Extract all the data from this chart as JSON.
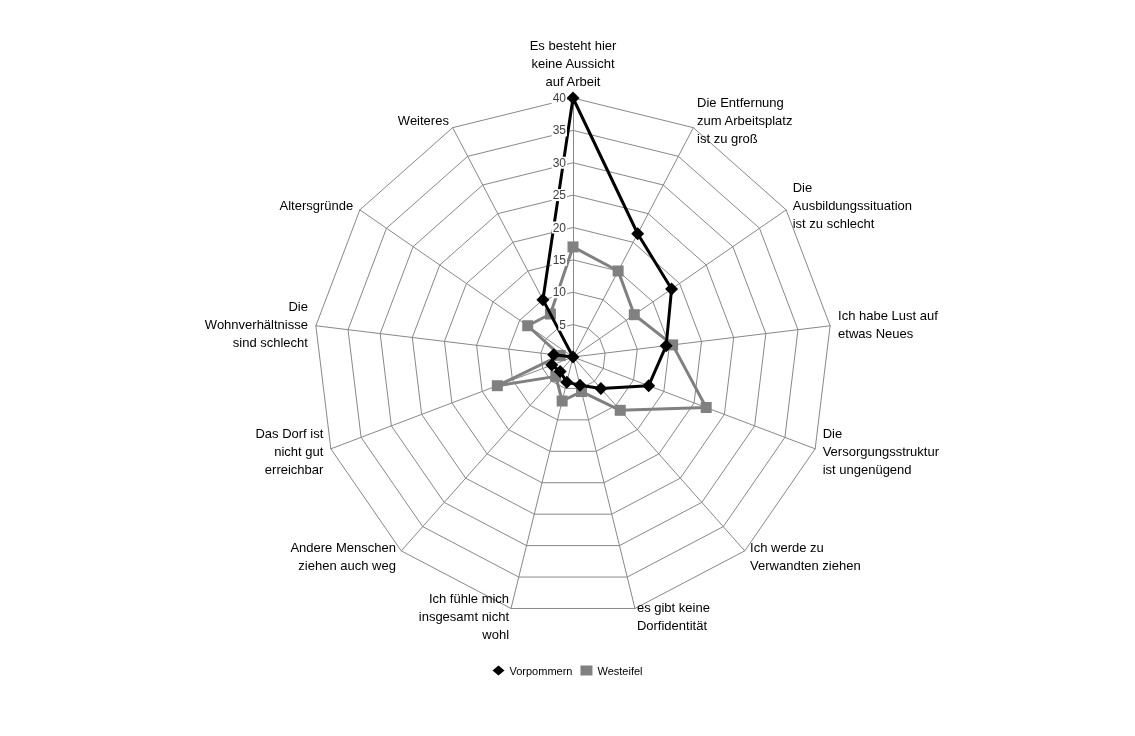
{
  "chart_data": {
    "type": "radar",
    "categories": [
      "Es besteht hier keine Aussicht auf Arbeit",
      "Die Entfernung zum Arbeitsplatz ist zu groß",
      "Die Ausbildungssituation ist zu schlecht",
      "Ich habe Lust auf etwas Neues",
      "Die Versorgungsstruktur ist ungenügend",
      "Ich werde zu Verwandten ziehen",
      "es gibt keine Dorfidentität",
      "Ich fühle mich insgesamt nicht wohl",
      "Andere Menschen ziehen auch weg",
      "Das Dorf ist nicht gut erreichbar",
      "Die Wohnverhältnisse sind schlecht",
      "Altersgründe",
      "Weiteres"
    ],
    "series": [
      {
        "name": "Vorpommern",
        "color": "#000000",
        "marker": "diamond",
        "values": [
          40,
          21.5,
          18.5,
          14.5,
          12.5,
          6.5,
          4.5,
          4,
          3,
          3.5,
          3,
          0,
          10
        ]
      },
      {
        "name": "Westeifel",
        "color": "#808080",
        "marker": "square",
        "values": [
          17,
          15,
          11.5,
          15.5,
          22,
          11,
          5.5,
          7,
          4,
          12.5,
          2,
          8.5,
          7.5
        ]
      }
    ],
    "ylim": [
      0,
      40
    ],
    "yticks": [
      5,
      10,
      15,
      20,
      25,
      30,
      35,
      40
    ],
    "grid": true,
    "legend": "bottom"
  }
}
